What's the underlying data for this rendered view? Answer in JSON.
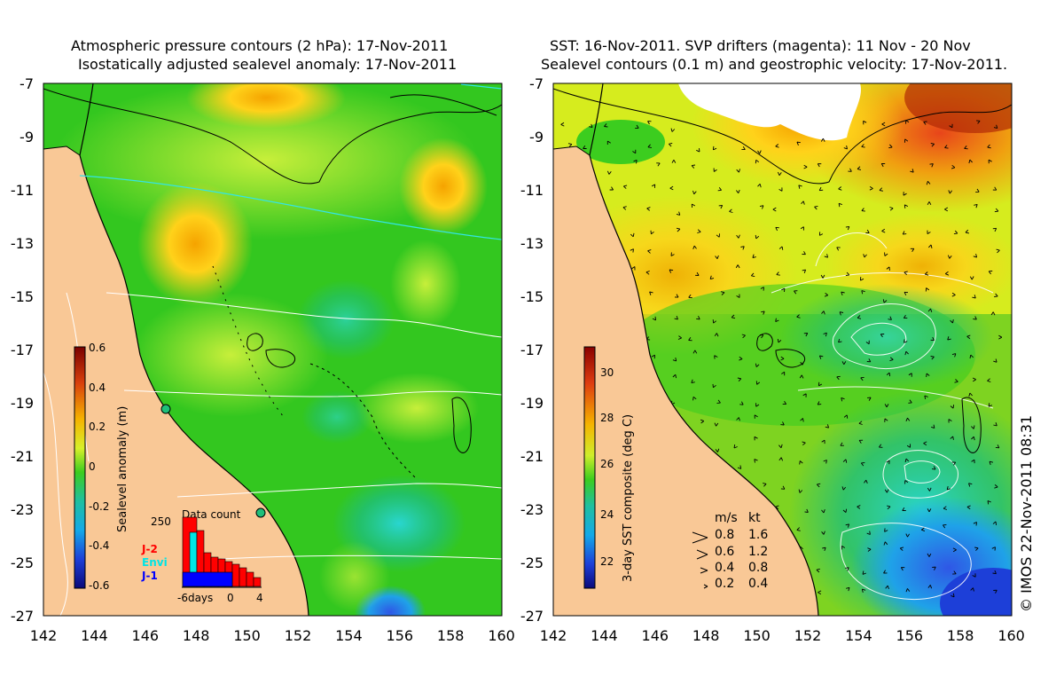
{
  "left_panel": {
    "title_line1": "Atmospheric pressure contours (2 hPa): 17-Nov-2011",
    "title_line2": "Isostatically adjusted sealevel anomaly: 17-Nov-2011",
    "colorbar_label": "Sealevel anomaly (m)",
    "colorbar_ticks": [
      "0.6",
      "0.4",
      "0.2",
      "0",
      "-0.2",
      "-0.4",
      "-0.6"
    ],
    "data_count": {
      "title": "Data count",
      "y_tick": "250",
      "x_ticks": [
        "-6days",
        "0",
        "4"
      ],
      "legend": [
        "J-2",
        "Envi",
        "J-1"
      ]
    }
  },
  "right_panel": {
    "title_line1": "SST: 16-Nov-2011. SVP drifters (magenta): 11 Nov - 20 Nov",
    "title_line2": "Sealevel contours (0.1 m) and geostrophic velocity: 17-Nov-2011.",
    "colorbar_label": "3-day SST composite (deg C)",
    "colorbar_ticks": [
      "30",
      "28",
      "26",
      "24",
      "22"
    ],
    "velocity_key": {
      "header_ms": "m/s",
      "header_kt": "kt",
      "rows": [
        {
          "ms": "0.8",
          "kt": "1.6"
        },
        {
          "ms": "0.6",
          "kt": "1.2"
        },
        {
          "ms": "0.4",
          "kt": "0.8"
        },
        {
          "ms": "0.2",
          "kt": "0.4"
        }
      ]
    }
  },
  "axes": {
    "y_labels": [
      "-7",
      "-9",
      "-11",
      "-13",
      "-15",
      "-17",
      "-19",
      "-21",
      "-23",
      "-25",
      "-27"
    ],
    "x_labels": [
      "142",
      "144",
      "146",
      "148",
      "150",
      "152",
      "154",
      "156",
      "158",
      "160"
    ]
  },
  "credit": "© IMOS 22-Nov-2011 08:31",
  "colors": {
    "land": "#f9c896",
    "ocean_green": "#33c71f",
    "legend_j2": "#ff0000",
    "legend_envi": "#00e5e5",
    "legend_j1": "#0000ff"
  }
}
